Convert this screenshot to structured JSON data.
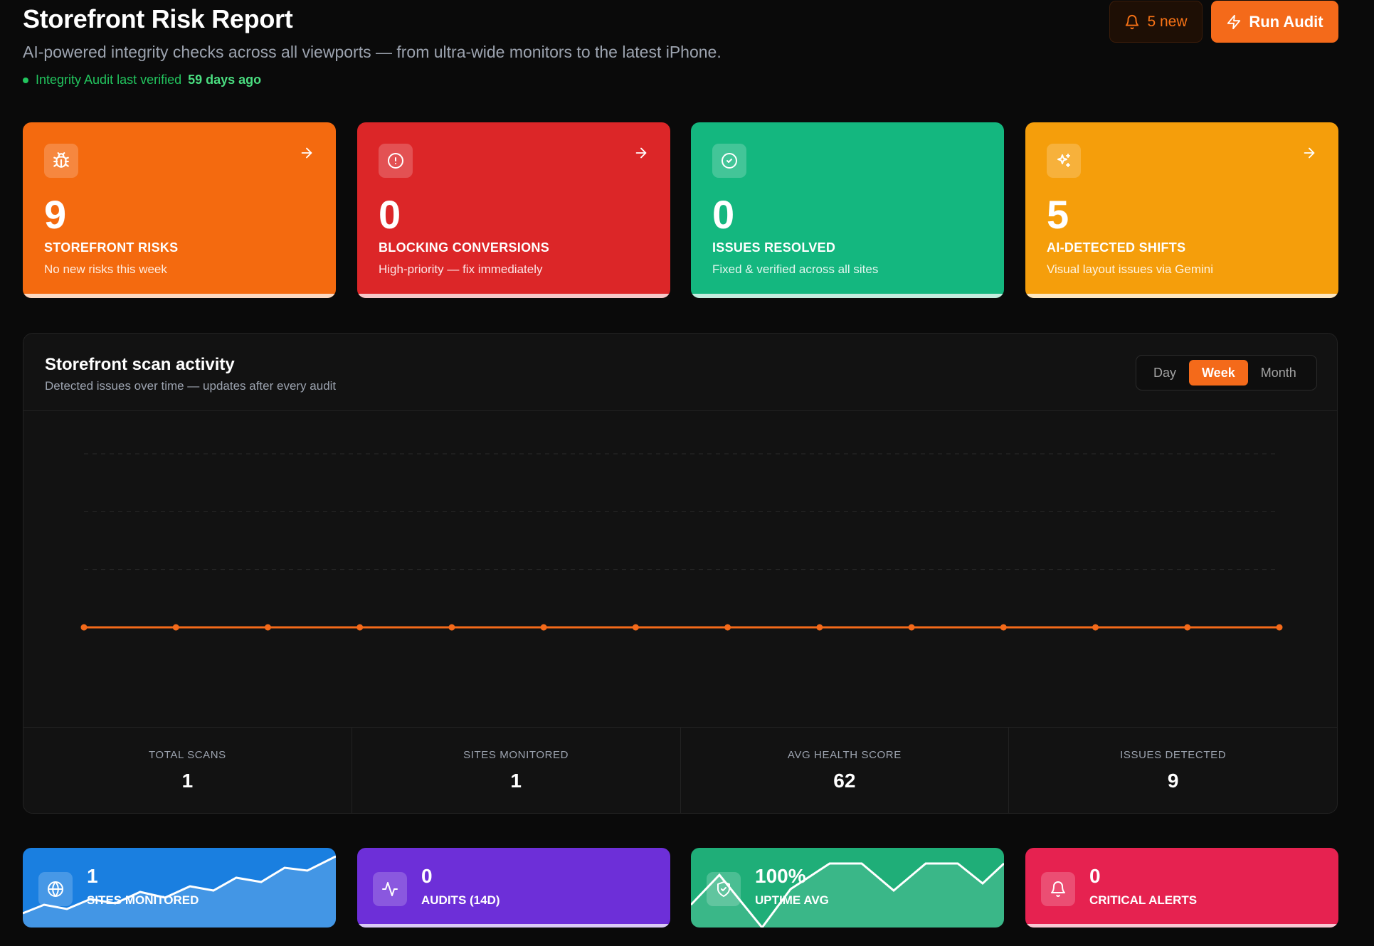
{
  "header": {
    "title": "Storefront Risk Report",
    "subtitle": "AI-powered integrity checks across all viewports — from ultra-wide monitors to the latest iPhone.",
    "verified_label": "Integrity Audit last verified",
    "verified_ago": "59 days ago",
    "notifications_label": "5 new",
    "run_audit_label": "Run Audit"
  },
  "kpis": [
    {
      "value": "9",
      "label": "STOREFRONT RISKS",
      "desc": "No new risks this week",
      "color": "#f46a0f",
      "icon": "bug-icon"
    },
    {
      "value": "0",
      "label": "BLOCKING CONVERSIONS",
      "desc": "High-priority — fix immediately",
      "color": "#dc2628",
      "icon": "alert-circle-icon"
    },
    {
      "value": "0",
      "label": "ISSUES RESOLVED",
      "desc": "Fixed & verified across all sites",
      "color": "#14b77f",
      "icon": "check-circle-icon"
    },
    {
      "value": "5",
      "label": "AI-DETECTED SHIFTS",
      "desc": "Visual layout issues via Gemini",
      "color": "#f59e0b",
      "icon": "sparkles-icon"
    }
  ],
  "activity": {
    "title": "Storefront scan activity",
    "subtitle": "Detected issues over time — updates after every audit",
    "ranges": [
      "Day",
      "Week",
      "Month"
    ],
    "selected_range": "Week",
    "line_color": "#f46a1a"
  },
  "chart_data": {
    "type": "line",
    "values": [
      0,
      0,
      0,
      0,
      0,
      0,
      0,
      0,
      0,
      0,
      0,
      0,
      0,
      0
    ],
    "ylim": [
      0,
      3
    ],
    "grid": true
  },
  "stats": [
    {
      "label": "TOTAL SCANS",
      "value": "1"
    },
    {
      "label": "SITES MONITORED",
      "value": "1"
    },
    {
      "label": "AVG HEALTH SCORE",
      "value": "62"
    },
    {
      "label": "ISSUES DETECTED",
      "value": "9"
    }
  ],
  "mini_cards": [
    {
      "value": "1",
      "label": "SITES MONITORED",
      "color": "#1a7fe0",
      "icon": "globe-icon"
    },
    {
      "value": "0",
      "label": "AUDITS (14D)",
      "color": "#6d2fd8",
      "icon": "activity-icon"
    },
    {
      "value": "100%",
      "label": "UPTIME AVG",
      "color": "#1fae78",
      "icon": "shield-check-icon"
    },
    {
      "value": "0",
      "label": "CRITICAL ALERTS",
      "color": "#e62250",
      "icon": "bell-icon"
    }
  ]
}
